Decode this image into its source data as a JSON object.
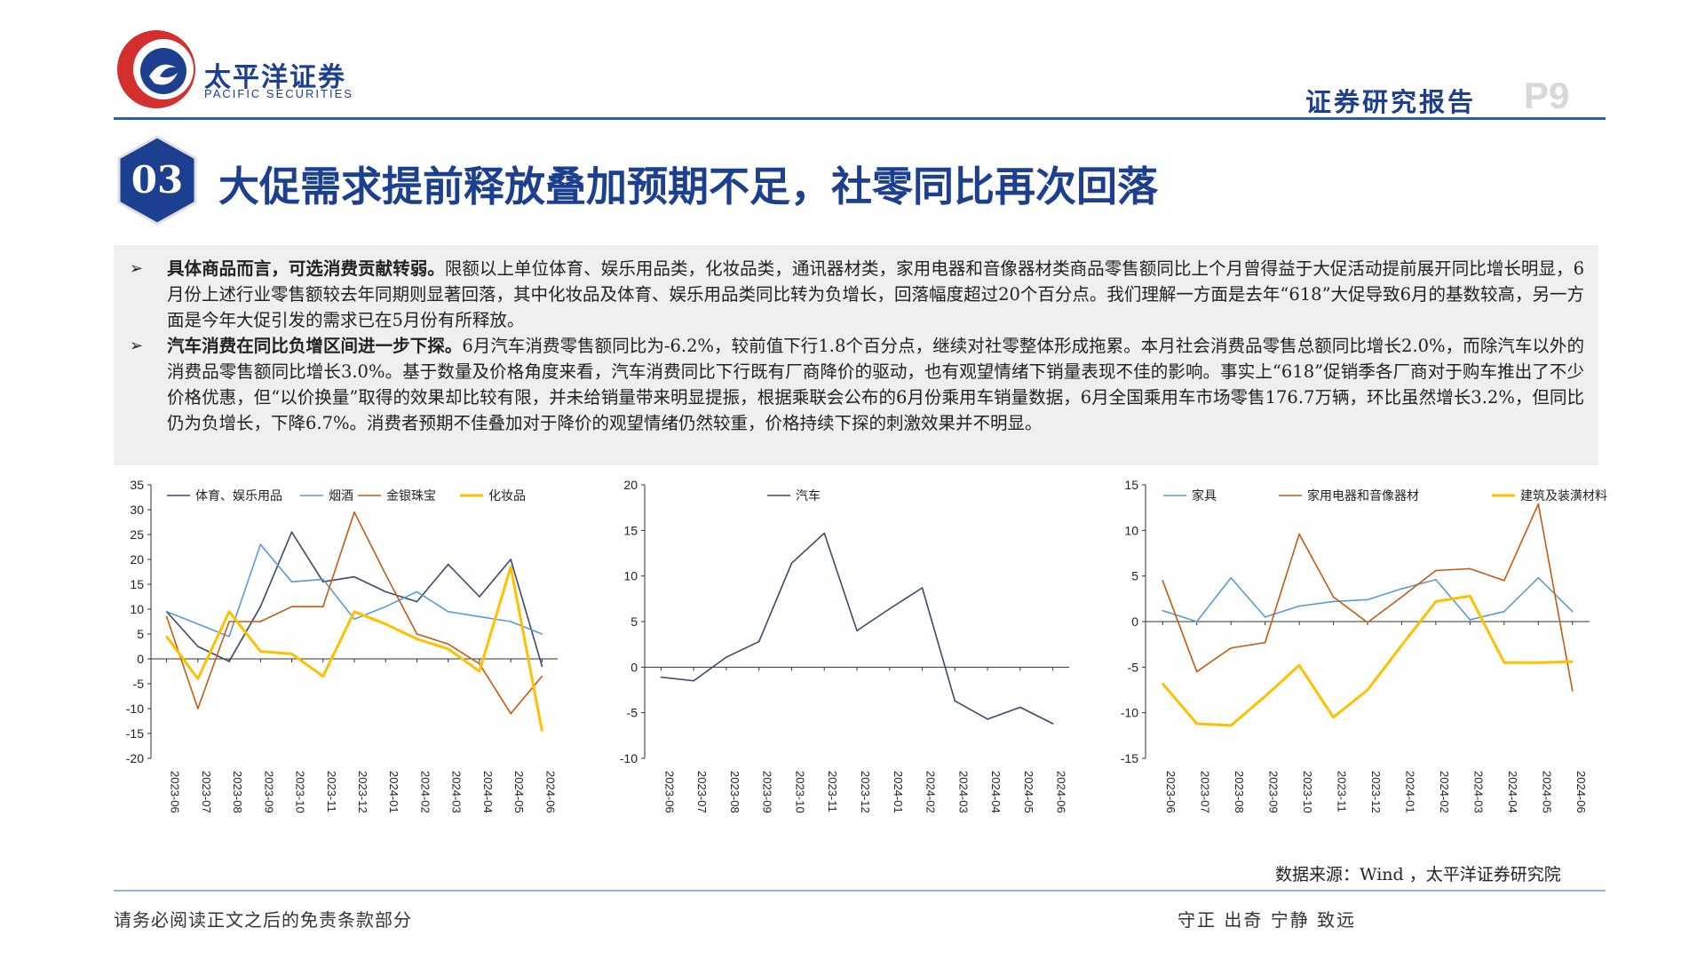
{
  "header": {
    "logo_cn": "太平洋证券",
    "logo_en": "PACIFIC SECURITIES",
    "report_type": "证券研究报告",
    "page_number": "P9"
  },
  "section": {
    "number": "03",
    "title": "大促需求提前释放叠加预期不足，社零同比再次回落"
  },
  "paragraphs": [
    {
      "bullet": "➢",
      "lead": "具体商品而言，可选消费贡献转弱。",
      "body": "限额以上单位体育、娱乐用品类，化妆品类，通讯器材类，家用电器和音像器材类商品零售额同比上个月曾得益于大促活动提前展开同比增长明显，6月份上述行业零售额较去年同期则显著回落，其中化妆品及体育、娱乐用品类同比转为负增长，回落幅度超过20个百分点。我们理解一方面是去年“618”大促导致6月的基数较高，另一方面是今年大促引发的需求已在5月份有所释放。"
    },
    {
      "bullet": "➢",
      "lead": "汽车消费在同比负增区间进一步下探。",
      "body": "6月汽车消费零售额同比为-6.2%，较前值下行1.8个百分点，继续对社零整体形成拖累。本月社会消费品零售总额同比增长2.0%，而除汽车以外的消费品零售额同比增长3.0%。基于数量及价格角度来看，汽车消费同比下行既有厂商降价的驱动，也有观望情绪下销量表现不佳的影响。事实上“618”促销季各厂商对于购车推出了不少价格优惠，但“以价换量”取得的效果却比较有限，并未给销量带来明显提振，根据乘联会公布的6月份乘用车销量数据，6月全国乘用车市场零售176.7万辆，环比虽然增长3.2%，但同比仍为负增长，下降6.7%。消费者预期不佳叠加对于降价的观望情绪仍然较重，价格持续下探的刺激效果并不明显。"
    }
  ],
  "chart_data": [
    {
      "type": "line",
      "categories": [
        "2023-06",
        "2023-07",
        "2023-08",
        "2023-09",
        "2023-10",
        "2023-11",
        "2023-12",
        "2024-01",
        "2024-02",
        "2024-03",
        "2024-04",
        "2024-05",
        "2024-06"
      ],
      "y_ticks": [
        35,
        30,
        25,
        20,
        15,
        10,
        5,
        0,
        -5,
        -10,
        -15,
        -20
      ],
      "ylim": [
        -20,
        35
      ],
      "legend_position": "top",
      "series": [
        {
          "name": "体育、娱乐用品",
          "color": "#3a4a6b",
          "values": [
            9.5,
            2.5,
            -0.5,
            10.5,
            25.5,
            15.5,
            16.5,
            13.5,
            11.5,
            19.0,
            12.5,
            20.0,
            -1.5
          ]
        },
        {
          "name": "烟酒",
          "color": "#5b9bd5",
          "values": [
            9.5,
            7.0,
            4.5,
            23.0,
            15.5,
            16.0,
            8.0,
            10.5,
            13.5,
            9.5,
            8.5,
            7.5,
            5.0
          ]
        },
        {
          "name": "金银珠宝",
          "color": "#c55a11",
          "values": [
            8.5,
            -10.0,
            7.5,
            7.5,
            10.5,
            10.5,
            29.5,
            17.0,
            5.0,
            3.0,
            -1.0,
            -11.0,
            -3.5
          ]
        },
        {
          "name": "化妆品",
          "color": "#ffc000",
          "values": [
            4.5,
            -4.0,
            9.5,
            1.5,
            1.0,
            -3.5,
            9.5,
            7.0,
            4.0,
            2.0,
            -2.5,
            18.5,
            -14.5
          ]
        }
      ]
    },
    {
      "type": "line",
      "categories": [
        "2023-06",
        "2023-07",
        "2023-08",
        "2023-09",
        "2023-10",
        "2023-11",
        "2023-12",
        "2024-01",
        "2024-02",
        "2024-03",
        "2024-04",
        "2024-05",
        "2024-06"
      ],
      "y_ticks": [
        20,
        15,
        10,
        5,
        0,
        -5,
        -10
      ],
      "ylim": [
        -10,
        20
      ],
      "legend_position": "top",
      "series": [
        {
          "name": "汽车",
          "color": "#3a4a6b",
          "values": [
            -1.1,
            -1.5,
            1.1,
            2.8,
            11.4,
            14.7,
            4.0,
            6.4,
            8.7,
            -3.7,
            -5.7,
            -4.4,
            -6.2
          ]
        }
      ]
    },
    {
      "type": "line",
      "categories": [
        "2023-06",
        "2023-07",
        "2023-08",
        "2023-09",
        "2023-10",
        "2023-11",
        "2023-12",
        "2024-01",
        "2024-02",
        "2024-03",
        "2024-04",
        "2024-05",
        "2024-06"
      ],
      "y_ticks": [
        15,
        10,
        5,
        0,
        -5,
        -10,
        -15
      ],
      "ylim": [
        -15,
        15
      ],
      "legend_position": "top",
      "series": [
        {
          "name": "家具",
          "color": "#5b9bd5",
          "values": [
            1.2,
            0.0,
            4.8,
            0.5,
            1.7,
            2.2,
            2.4,
            3.6,
            4.6,
            0.2,
            1.1,
            4.8,
            1.1
          ]
        },
        {
          "name": "家用电器和音像器材",
          "color": "#c55a11",
          "values": [
            4.5,
            -5.5,
            -2.9,
            -2.3,
            9.6,
            2.7,
            -0.1,
            2.7,
            5.6,
            5.8,
            4.5,
            12.9,
            -7.6
          ]
        },
        {
          "name": "建筑及装潢材料",
          "color": "#ffc000",
          "values": [
            -6.8,
            -11.2,
            -11.4,
            -8.2,
            -4.8,
            -10.5,
            -7.5,
            -2.6,
            2.2,
            2.8,
            -4.5,
            -4.5,
            -4.4
          ]
        }
      ]
    }
  ],
  "source": "数据来源：Wind ，太平洋证券研究院",
  "footer": {
    "disclaimer": "请务必阅读正文之后的免责条款部分",
    "motto": "守正 出奇 宁静 致远"
  },
  "colors": {
    "brand_blue": "#1c3f8f",
    "brand_red": "#d32f2f"
  }
}
